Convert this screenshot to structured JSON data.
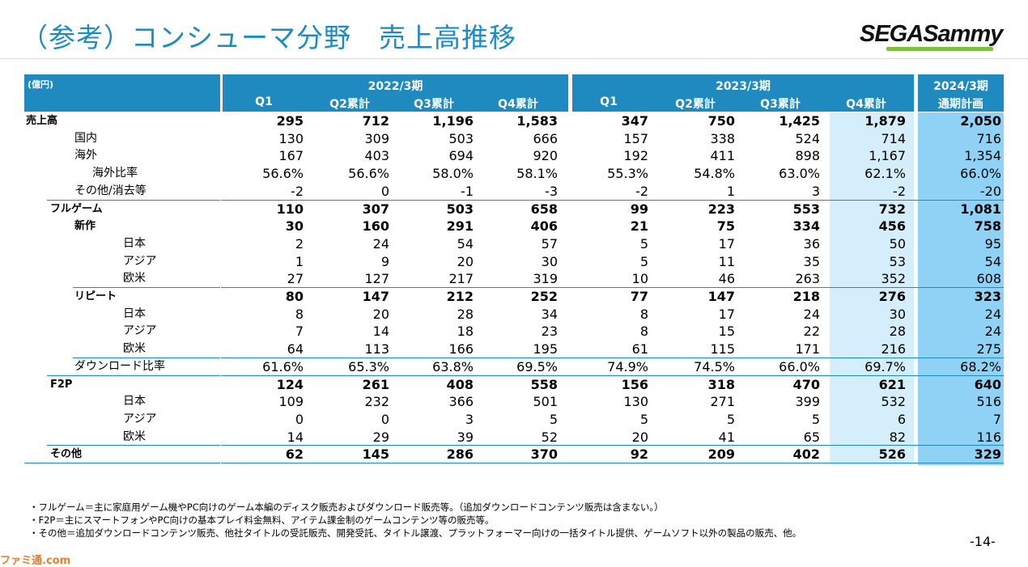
{
  "title": "（参考）コンシューマ分野　売上高推移",
  "logo": "SEGASammy",
  "header": {
    "unit": "(億円)",
    "groups": [
      {
        "label": "2022/3期",
        "cols": [
          "Q1",
          "Q2累計",
          "Q3累計",
          "Q4累計"
        ]
      },
      {
        "label": "2023/3期",
        "cols": [
          "Q1",
          "Q2累計",
          "Q3累計",
          "Q4累計"
        ]
      },
      {
        "label": "2024/3期",
        "cols": [
          "通期計画"
        ]
      }
    ]
  },
  "rows": [
    {
      "label": "売上高",
      "indent": 0,
      "bold": true,
      "values": [
        "295",
        "712",
        "1,196",
        "1,583",
        "347",
        "750",
        "1,425",
        "1,879",
        "2,050"
      ]
    },
    {
      "label": "国内",
      "indent": 2,
      "bold": false,
      "values": [
        "130",
        "309",
        "503",
        "666",
        "157",
        "338",
        "524",
        "714",
        "716"
      ]
    },
    {
      "label": "海外",
      "indent": 2,
      "bold": false,
      "values": [
        "167",
        "403",
        "694",
        "920",
        "192",
        "411",
        "898",
        "1,167",
        "1,354"
      ]
    },
    {
      "label": "海外比率",
      "indent": 3,
      "bold": false,
      "values": [
        "56.6%",
        "56.6%",
        "58.0%",
        "58.1%",
        "55.3%",
        "54.8%",
        "63.0%",
        "62.1%",
        "66.0%"
      ]
    },
    {
      "label": "その他/消去等",
      "indent": 2,
      "bold": false,
      "values": [
        "-2",
        "0",
        "-1",
        "-3",
        "-2",
        "1",
        "3",
        "-2",
        "-20"
      ]
    },
    {
      "label": "フルゲーム",
      "indent": 1,
      "bold": true,
      "values": [
        "110",
        "307",
        "503",
        "658",
        "99",
        "223",
        "553",
        "732",
        "1,081"
      ]
    },
    {
      "label": "新作",
      "indent": 2,
      "bold": true,
      "values": [
        "30",
        "160",
        "291",
        "406",
        "21",
        "75",
        "334",
        "456",
        "758"
      ]
    },
    {
      "label": "日本",
      "indent": 4,
      "bold": false,
      "values": [
        "2",
        "24",
        "54",
        "57",
        "5",
        "17",
        "36",
        "50",
        "95"
      ]
    },
    {
      "label": "アジア",
      "indent": 4,
      "bold": false,
      "values": [
        "1",
        "9",
        "20",
        "30",
        "5",
        "11",
        "35",
        "53",
        "54"
      ]
    },
    {
      "label": "欧米",
      "indent": 4,
      "bold": false,
      "values": [
        "27",
        "127",
        "217",
        "319",
        "10",
        "46",
        "263",
        "352",
        "608"
      ]
    },
    {
      "label": "リピート",
      "indent": 2,
      "bold": true,
      "values": [
        "80",
        "147",
        "212",
        "252",
        "77",
        "147",
        "218",
        "276",
        "323"
      ]
    },
    {
      "label": "日本",
      "indent": 4,
      "bold": false,
      "values": [
        "8",
        "20",
        "28",
        "34",
        "8",
        "17",
        "24",
        "30",
        "24"
      ]
    },
    {
      "label": "アジア",
      "indent": 4,
      "bold": false,
      "values": [
        "7",
        "14",
        "18",
        "23",
        "8",
        "15",
        "22",
        "28",
        "24"
      ]
    },
    {
      "label": "欧米",
      "indent": 4,
      "bold": false,
      "values": [
        "64",
        "113",
        "166",
        "195",
        "61",
        "115",
        "171",
        "216",
        "275"
      ]
    },
    {
      "label": "ダウンロード比率",
      "indent": 2,
      "bold": false,
      "values": [
        "61.6%",
        "65.3%",
        "63.8%",
        "69.5%",
        "74.9%",
        "74.5%",
        "66.0%",
        "69.7%",
        "68.2%"
      ]
    },
    {
      "label": "F2P",
      "indent": 1,
      "bold": true,
      "values": [
        "124",
        "261",
        "408",
        "558",
        "156",
        "318",
        "470",
        "621",
        "640"
      ]
    },
    {
      "label": "日本",
      "indent": 4,
      "bold": false,
      "values": [
        "109",
        "232",
        "366",
        "501",
        "130",
        "271",
        "399",
        "532",
        "516"
      ]
    },
    {
      "label": "アジア",
      "indent": 4,
      "bold": false,
      "values": [
        "0",
        "0",
        "3",
        "5",
        "5",
        "5",
        "5",
        "6",
        "7"
      ]
    },
    {
      "label": "欧米",
      "indent": 4,
      "bold": false,
      "values": [
        "14",
        "29",
        "39",
        "52",
        "20",
        "41",
        "65",
        "82",
        "116"
      ]
    },
    {
      "label": "その他",
      "indent": 1,
      "bold": true,
      "values": [
        "62",
        "145",
        "286",
        "370",
        "92",
        "209",
        "402",
        "526",
        "329"
      ]
    }
  ],
  "notes": [
    "・フルゲーム＝主に家庭用ゲーム機やPC向けのゲーム本編のディスク販売およびダウンロード販売等。（追加ダウンロードコンテンツ販売は含まない。）",
    "・F2P＝主にスマートフォンやPC向けの基本プレイ料金無料、アイテム課金制のゲームコンテンツ等の販売等。",
    "・その他＝追加ダウンロードコンテンツ販売、他社タイトルの受託販売、開発受託、タイトル譲渡、プラットフォーマー向けの一括タイトル提供、ゲームソフト以外の製品の販売、他。"
  ],
  "page_number": "-14-",
  "watermark": "ファミ通.com"
}
